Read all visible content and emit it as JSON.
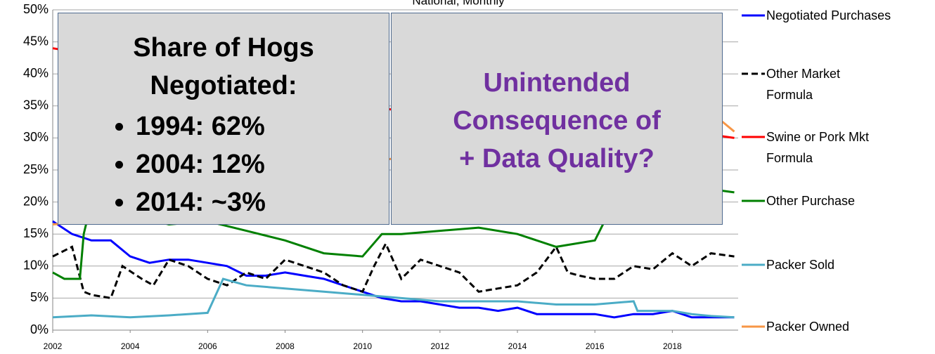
{
  "chart_data": {
    "type": "line",
    "title": "National, Monthly",
    "annotations": {
      "left_title": "Share of Hogs Negotiated:",
      "left_items": [
        "1994: 62%",
        "2004: 12%",
        "2014: ~3%"
      ],
      "right_text": "Unintended Consequence of + Data Quality?"
    },
    "xlim": [
      2002,
      2019.7
    ],
    "xticks": [
      2002,
      2004,
      2006,
      2008,
      2010,
      2012,
      2014,
      2016,
      2018
    ],
    "ylim": [
      0,
      50
    ],
    "yticks": [
      {
        "value": 0,
        "label": "0%"
      },
      {
        "value": 5,
        "label": "5%"
      },
      {
        "value": 10,
        "label": "10%"
      },
      {
        "value": 15,
        "label": "15%"
      },
      {
        "value": 20,
        "label": "20%"
      },
      {
        "value": 25,
        "label": "25%"
      },
      {
        "value": 30,
        "label": "30%"
      },
      {
        "value": 35,
        "label": "35%"
      },
      {
        "value": 40,
        "label": "40%"
      },
      {
        "value": 45,
        "label": "45%"
      },
      {
        "value": 50,
        "label": "50%"
      }
    ],
    "grid": true,
    "legend": "right",
    "series": [
      {
        "name": "Negotiated Purchases",
        "color": "#0000ff",
        "dash": false,
        "x": [
          2002,
          2002.5,
          2003,
          2003.5,
          2004,
          2004.5,
          2005,
          2005.5,
          2006,
          2006.5,
          2007,
          2007.5,
          2008,
          2008.5,
          2009,
          2009.5,
          2010,
          2010.5,
          2011,
          2011.5,
          2012,
          2012.5,
          2013,
          2013.5,
          2014,
          2014.5,
          2015,
          2015.5,
          2016,
          2016.5,
          2017,
          2017.5,
          2018,
          2018.5,
          2019,
          2019.6
        ],
        "values": [
          17,
          15,
          14,
          14,
          11.5,
          10.5,
          11,
          11,
          10.5,
          10,
          8.5,
          8.5,
          9,
          8.5,
          8,
          7,
          6,
          5,
          4.5,
          4.5,
          4,
          3.5,
          3.5,
          3,
          3.5,
          2.5,
          2.5,
          2.5,
          2.5,
          2,
          2.5,
          2.5,
          3,
          2,
          2,
          2
        ]
      },
      {
        "name": "Other Market Formula",
        "color": "#000000",
        "dash": true,
        "x": [
          2002,
          2002.5,
          2002.8,
          2003,
          2003.5,
          2003.8,
          2004.3,
          2004.6,
          2005,
          2005.5,
          2006,
          2006.5,
          2007,
          2007.5,
          2008,
          2008.5,
          2009,
          2009.5,
          2010,
          2010.3,
          2010.6,
          2011,
          2011.5,
          2012,
          2012.5,
          2013,
          2013.5,
          2014,
          2014.5,
          2015,
          2015.3,
          2015.6,
          2016,
          2016.5,
          2017,
          2017.5,
          2018,
          2018.5,
          2019,
          2019.6
        ],
        "values": [
          11.5,
          13,
          6,
          5.5,
          5,
          10,
          8,
          7,
          11,
          10,
          8,
          7,
          9,
          8,
          11,
          10,
          9,
          7,
          6,
          10,
          13.5,
          8,
          11,
          10,
          9,
          6,
          6.5,
          7,
          9,
          13,
          9,
          8.5,
          8,
          8,
          10,
          9.5,
          12,
          10,
          12,
          11.5
        ]
      },
      {
        "name": "Swine or Pork Mkt Formula",
        "color": "#ff0000",
        "dash": false,
        "x": [
          2002,
          2003,
          2006,
          2010,
          2014,
          2018,
          2019,
          2019.6
        ],
        "values": [
          44,
          43,
          40,
          35,
          32,
          31,
          30.5,
          30
        ]
      },
      {
        "name": "Other Purchase",
        "color": "#008000",
        "dash": false,
        "x": [
          2002,
          2002.3,
          2002.7,
          2002.8,
          2003,
          2004,
          2005,
          2006,
          2007,
          2008,
          2009,
          2010,
          2010.5,
          2011,
          2012,
          2013,
          2014,
          2015,
          2016,
          2016.5,
          2017,
          2018,
          2019,
          2019.6
        ],
        "values": [
          9,
          8,
          8,
          15,
          20,
          18,
          16.5,
          17,
          15.5,
          14,
          12,
          11.5,
          15,
          15,
          15.5,
          16,
          15,
          13,
          14,
          20,
          25,
          24,
          22,
          21.5
        ]
      },
      {
        "name": "Packer Sold",
        "color": "#4bacc6",
        "dash": false,
        "x": [
          2002,
          2003,
          2004,
          2005,
          2006,
          2006.4,
          2007,
          2008,
          2009,
          2010,
          2011,
          2012,
          2013,
          2014,
          2015,
          2016,
          2017,
          2017.1,
          2018,
          2018.5,
          2019,
          2019.6
        ],
        "values": [
          2,
          2.3,
          2,
          2.3,
          2.7,
          8,
          7,
          6.5,
          6,
          5.5,
          5,
          4.5,
          4.5,
          4.5,
          4,
          4,
          4.5,
          3,
          3,
          2.5,
          2.2,
          2
        ]
      },
      {
        "name": "Packer Owned",
        "color": "#f79646",
        "dash": false,
        "x": [
          2002,
          2003,
          2006,
          2010,
          2014,
          2018,
          2019.3,
          2019.6
        ],
        "values": [
          16.5,
          17,
          20,
          26,
          30,
          32,
          32.5,
          31
        ]
      }
    ]
  }
}
